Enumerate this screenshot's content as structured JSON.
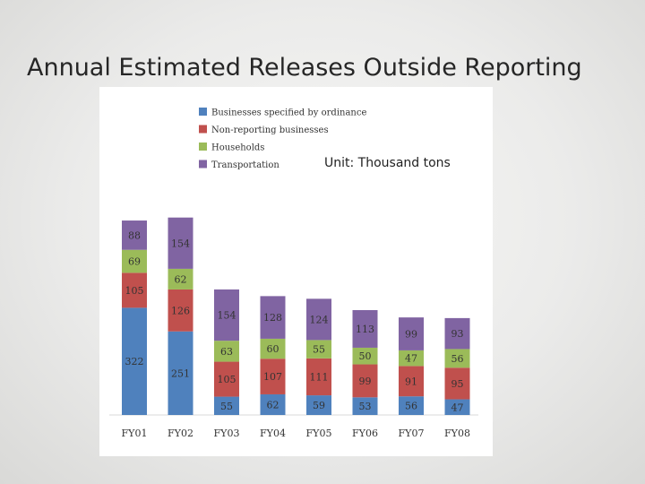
{
  "slide": {
    "title": "Annual Estimated Releases Outside Reporting",
    "unit": "Unit: Thousand tons"
  },
  "chart_data": {
    "type": "bar",
    "stacked": true,
    "categories": [
      "FY01",
      "FY02",
      "FY03",
      "FY04",
      "FY05",
      "FY06",
      "FY07",
      "FY08"
    ],
    "series": [
      {
        "name": "Businesses specified by ordinance",
        "color": "#4f81bd",
        "values": [
          322,
          251,
          55,
          62,
          59,
          53,
          56,
          47
        ]
      },
      {
        "name": "Non-reporting businesses",
        "color": "#c0504d",
        "values": [
          105,
          126,
          105,
          107,
          111,
          99,
          91,
          95
        ]
      },
      {
        "name": "Households",
        "color": "#9bbb59",
        "values": [
          69,
          62,
          63,
          60,
          55,
          50,
          47,
          56
        ]
      },
      {
        "name": "Transportation",
        "color": "#8064a2",
        "values": [
          88,
          154,
          154,
          128,
          124,
          113,
          99,
          93
        ]
      }
    ],
    "legend_position": "top-left",
    "grid": false
  }
}
